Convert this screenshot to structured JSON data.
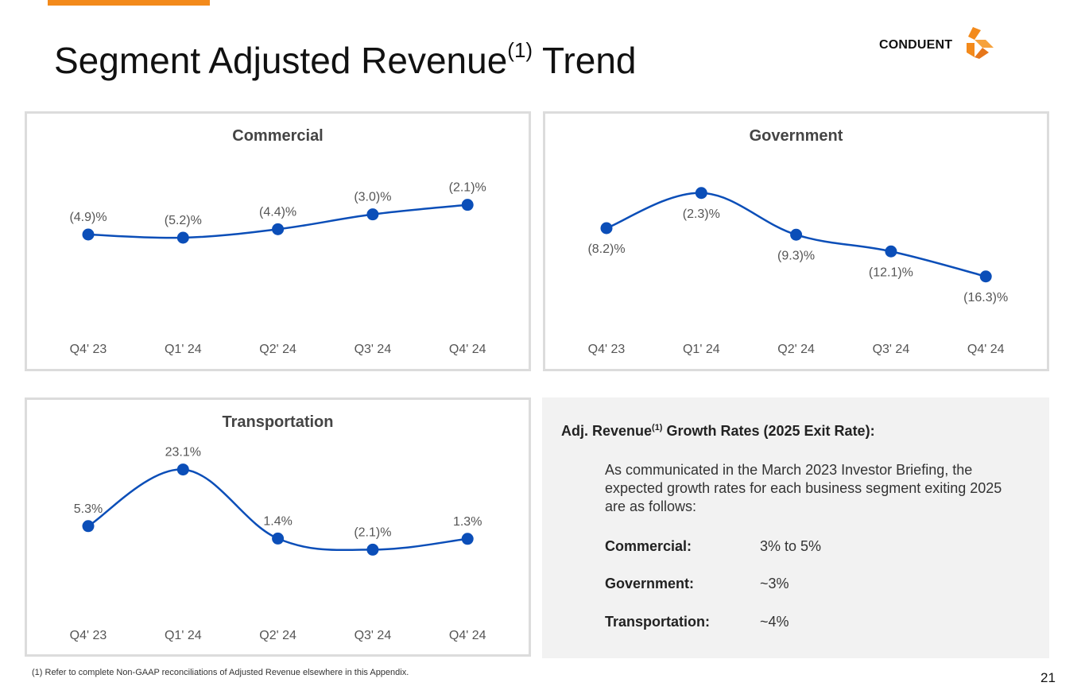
{
  "page": {
    "title_main": "Segment Adjusted Revenue",
    "title_sup": "(1)",
    "title_tail": " Trend",
    "logo_text": "CONDUENT",
    "page_number": "21",
    "footnote": "(1)  Refer to complete Non-GAAP reconciliations of Adjusted Revenue elsewhere in this Appendix."
  },
  "colors": {
    "accent": "#f38a1b",
    "series": "#0b4eb8",
    "panel_border": "#dcdcdc",
    "info_bg": "#f2f2f2"
  },
  "chart_data": [
    {
      "id": "commercial",
      "type": "line",
      "title": "Commercial",
      "categories": [
        "Q4' 23",
        "Q1' 24",
        "Q2' 24",
        "Q3' 24",
        "Q4' 24"
      ],
      "values": [
        -4.9,
        -5.2,
        -4.4,
        -3.0,
        -2.1
      ],
      "labels": [
        "(4.9)%",
        "(5.2)%",
        "(4.4)%",
        "(3.0)%",
        "(2.1)%"
      ],
      "label_position": [
        "above",
        "above",
        "above",
        "above",
        "above"
      ],
      "ylim": [
        -16,
        2
      ],
      "xlabel": "",
      "ylabel": ""
    },
    {
      "id": "government",
      "type": "line",
      "title": "Government",
      "categories": [
        "Q4' 23",
        "Q1' 24",
        "Q2' 24",
        "Q3' 24",
        "Q4' 24"
      ],
      "values": [
        -8.2,
        -2.3,
        -9.3,
        -12.1,
        -16.3
      ],
      "labels": [
        "(8.2)%",
        "(2.3)%",
        "(9.3)%",
        "(12.1)%",
        "(16.3)%"
      ],
      "label_position": [
        "below",
        "below",
        "below",
        "below",
        "below"
      ],
      "ylim": [
        -29,
        3
      ],
      "xlabel": "",
      "ylabel": ""
    },
    {
      "id": "transportation",
      "type": "line",
      "title": "Transportation",
      "categories": [
        "Q4' 23",
        "Q1' 24",
        "Q2' 24",
        "Q3' 24",
        "Q4' 24"
      ],
      "values": [
        5.3,
        23.1,
        1.4,
        -2.1,
        1.3
      ],
      "labels": [
        "5.3%",
        "23.1%",
        "1.4%",
        "(2.1)%",
        "1.3%"
      ],
      "label_position": [
        "above",
        "above",
        "above",
        "above",
        "above"
      ],
      "ylim": [
        -30,
        30
      ],
      "xlabel": "",
      "ylabel": ""
    }
  ],
  "info": {
    "heading_pre": "Adj. Revenue",
    "heading_sup": "(1)",
    "heading_post": " Growth Rates (2025 Exit Rate):",
    "body": "As communicated in the March 2023 Investor Briefing, the expected growth rates for each business segment exiting 2025 are as follows:",
    "rates": [
      {
        "label": "Commercial:",
        "value": "3% to 5%"
      },
      {
        "label": "Government:",
        "value": "~3%"
      },
      {
        "label": "Transportation:",
        "value": "~4%"
      }
    ]
  }
}
